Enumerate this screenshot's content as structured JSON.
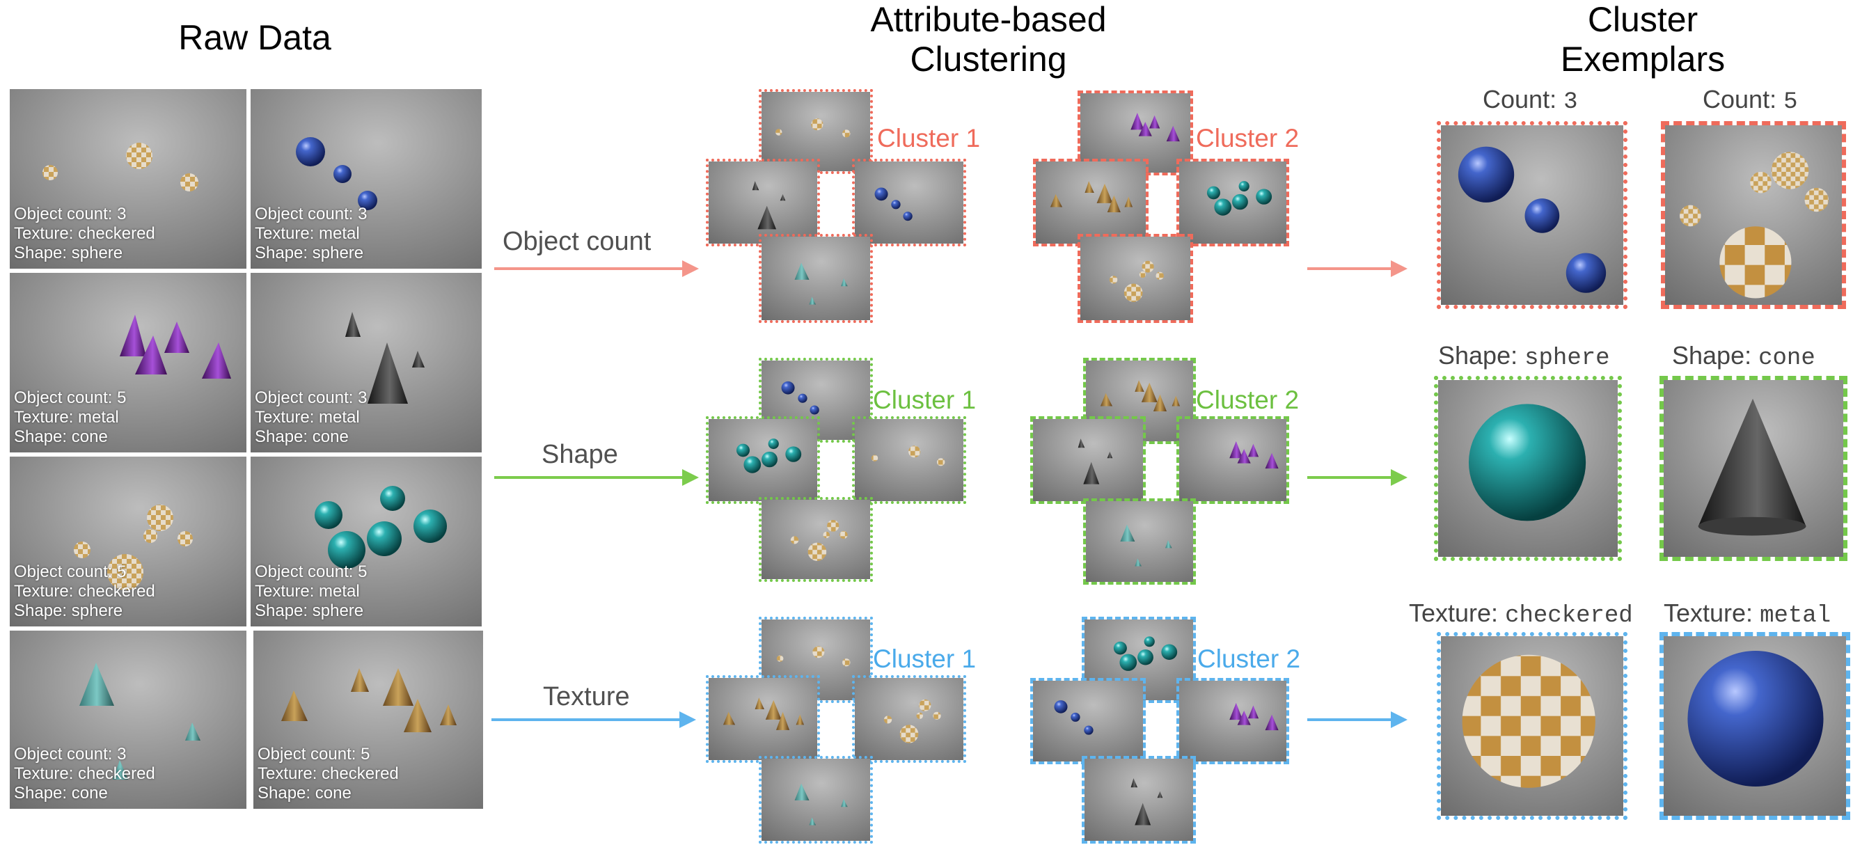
{
  "headings": {
    "raw_data": "Raw Data",
    "clustering_line1": "Attribute-based",
    "clustering_line2": "Clustering",
    "exemplars_line1": "Cluster",
    "exemplars_line2": "Exemplars"
  },
  "caption_keys": {
    "count": "Object count:",
    "texture": "Texture:",
    "shape": "Shape:"
  },
  "raw_images": [
    {
      "count": "3",
      "texture": "checkered",
      "shape": "sphere"
    },
    {
      "count": "3",
      "texture": "metal",
      "shape": "sphere"
    },
    {
      "count": "5",
      "texture": "metal",
      "shape": "cone"
    },
    {
      "count": "3",
      "texture": "metal",
      "shape": "cone"
    },
    {
      "count": "5",
      "texture": "checkered",
      "shape": "sphere"
    },
    {
      "count": "5",
      "texture": "metal",
      "shape": "sphere"
    },
    {
      "count": "3",
      "texture": "checkered",
      "shape": "cone"
    },
    {
      "count": "5",
      "texture": "checkered",
      "shape": "cone"
    }
  ],
  "rows": [
    {
      "attribute": "Object count",
      "color": "#f08070",
      "cluster1": "Cluster 1",
      "cluster2": "Cluster 2",
      "exemplars": [
        {
          "key": "Count:",
          "value": "3"
        },
        {
          "key": "Count:",
          "value": "5"
        }
      ]
    },
    {
      "attribute": "Shape",
      "color": "#7ccc4c",
      "cluster1": "Cluster 1",
      "cluster2": "Cluster 2",
      "exemplars": [
        {
          "key": "Shape:",
          "value": "sphere"
        },
        {
          "key": "Shape:",
          "value": "cone"
        }
      ]
    },
    {
      "attribute": "Texture",
      "color": "#5eb4ee",
      "cluster1": "Cluster 1",
      "cluster2": "Cluster 2",
      "exemplars": [
        {
          "key": "Texture:",
          "value": "checkered"
        },
        {
          "key": "Texture:",
          "value": "metal"
        }
      ]
    }
  ]
}
